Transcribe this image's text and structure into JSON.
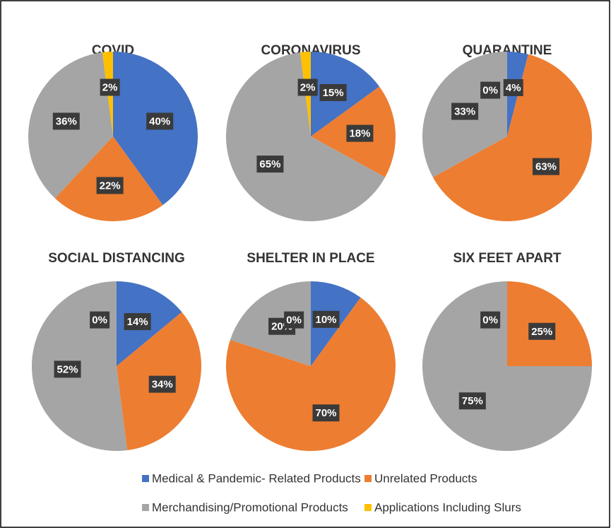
{
  "legend": {
    "names": [
      "Medical & Pandemic- Related Products",
      "Unrelated Products",
      "Merchandising/Promotional Products",
      "Applications Including Slurs"
    ],
    "colors": [
      "#4472c4",
      "#ed7d31",
      "#a5a5a5",
      "#ffc000"
    ]
  },
  "chart_data": [
    {
      "type": "pie",
      "title": "COVID",
      "values": [
        40,
        22,
        36,
        2
      ],
      "value_labels": [
        "40%",
        "22%",
        "36%",
        "2%"
      ]
    },
    {
      "type": "pie",
      "title": "CORONAVIRUS",
      "values": [
        15,
        18,
        65,
        2
      ],
      "value_labels": [
        "15%",
        "18%",
        "65%",
        "2%"
      ]
    },
    {
      "type": "pie",
      "title": "QUARANTINE",
      "values": [
        4,
        63,
        33,
        0
      ],
      "value_labels": [
        "4%",
        "63%",
        "33%",
        "0%"
      ]
    },
    {
      "type": "pie",
      "title": "SOCIAL DISTANCING",
      "values": [
        14,
        34,
        52,
        0
      ],
      "value_labels": [
        "14%",
        "34%",
        "52%",
        "0%"
      ]
    },
    {
      "type": "pie",
      "title": "SHELTER IN PLACE",
      "values": [
        10,
        70,
        20,
        0
      ],
      "value_labels": [
        "10%",
        "70%",
        "20%",
        "0%"
      ]
    },
    {
      "type": "pie",
      "title": "SIX FEET APART",
      "values": [
        0,
        25,
        75
      ],
      "value_labels": [
        "0%",
        "25%",
        "75%"
      ]
    }
  ]
}
